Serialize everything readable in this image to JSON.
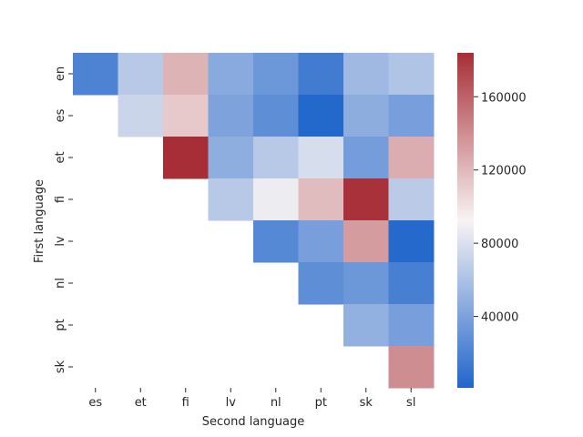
{
  "chart_data": {
    "type": "heatmap",
    "title": "",
    "xlabel": "Second language",
    "ylabel": "First language",
    "x_categories": [
      "es",
      "et",
      "fi",
      "lv",
      "nl",
      "pt",
      "sk",
      "sl"
    ],
    "y_categories": [
      "en",
      "es",
      "et",
      "fi",
      "lv",
      "nl",
      "pt",
      "sk"
    ],
    "values": [
      [
        20000,
        65000,
        122000,
        45000,
        33000,
        15000,
        55000,
        62000
      ],
      [
        null,
        73000,
        112000,
        40000,
        27000,
        2000,
        47000,
        38000
      ],
      [
        null,
        null,
        184000,
        48000,
        65000,
        78000,
        37000,
        125000
      ],
      [
        null,
        null,
        null,
        65000,
        88000,
        118000,
        182000,
        66000
      ],
      [
        null,
        null,
        null,
        null,
        23000,
        38000,
        133000,
        3000
      ],
      [
        null,
        null,
        null,
        null,
        null,
        27000,
        33000,
        17000
      ],
      [
        null,
        null,
        null,
        null,
        null,
        null,
        49000,
        38000
      ],
      [
        null,
        null,
        null,
        null,
        null,
        null,
        null,
        140000
      ]
    ],
    "vmin": 1000,
    "vmax": 184000,
    "colormap": {
      "name": "vlag",
      "low": "#2166cb",
      "mid": "#f8f3f3",
      "high": "#a72e36"
    },
    "colorbar": {
      "ticks": [
        40000,
        80000,
        120000,
        160000
      ],
      "tick_labels": [
        "40000",
        "80000",
        "120000",
        "160000"
      ]
    }
  }
}
